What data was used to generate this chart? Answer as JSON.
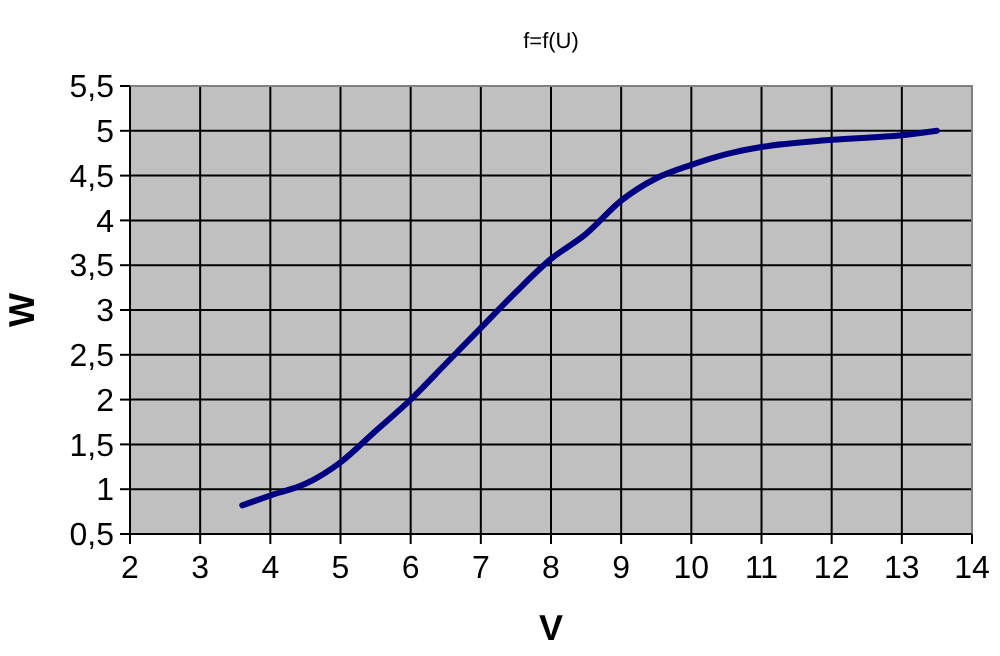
{
  "chart_data": {
    "type": "line",
    "title": "f=f(U)",
    "xlabel": "V",
    "ylabel": "W",
    "xlim": [
      2,
      14
    ],
    "xticks": [
      2,
      3,
      4,
      5,
      6,
      7,
      8,
      9,
      10,
      11,
      12,
      13,
      14
    ],
    "ylim": [
      0.5,
      5.5
    ],
    "yticks": [
      {
        "value": 0.5,
        "label": "0,5"
      },
      1,
      {
        "value": 1.5,
        "label": "1,5"
      },
      2,
      {
        "value": 2.5,
        "label": "2,5"
      },
      3,
      {
        "value": 3.5,
        "label": "3,5"
      },
      4,
      {
        "value": 4.5,
        "label": "4,5"
      },
      5,
      {
        "value": 5.5,
        "label": "5,5"
      }
    ],
    "grid": true,
    "marker": "none",
    "line_style": "solid",
    "series": [
      {
        "color": "#000080",
        "x": [
          3.6,
          4,
          4.5,
          5,
          5.5,
          6,
          6.5,
          7,
          7.5,
          8,
          8.5,
          9,
          9.5,
          10,
          10.5,
          11,
          12,
          13,
          13.5
        ],
        "values": [
          0.82,
          0.93,
          1.06,
          1.3,
          1.65,
          2.0,
          2.4,
          2.8,
          3.2,
          3.57,
          3.85,
          4.22,
          4.47,
          4.62,
          4.74,
          4.82,
          4.9,
          4.95,
          5.0
        ]
      }
    ]
  }
}
